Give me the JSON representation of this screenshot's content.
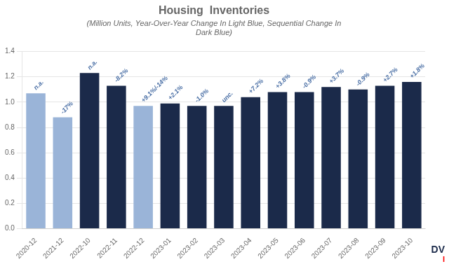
{
  "chart_data": {
    "type": "bar",
    "title": "Housing  Inventories",
    "subtitle": "(Million Units, Year-Over-Year Change In Light Blue, Sequential Change In\nDark Blue)",
    "categories": [
      "2020-12",
      "2021-12",
      "2022-10",
      "2022-11",
      "2022-12",
      "2023-01",
      "2023-02",
      "2023-03",
      "2023-04",
      "2023-05",
      "2023-06",
      "2023-07",
      "2023-08",
      "2023-09",
      "2023-10"
    ],
    "values": [
      1.07,
      0.88,
      1.23,
      1.13,
      0.97,
      0.99,
      0.97,
      0.97,
      1.04,
      1.08,
      1.08,
      1.12,
      1.1,
      1.13,
      1.16
    ],
    "colors": [
      "#9ab4d8",
      "#9ab4d8",
      "#1b2a4a",
      "#1b2a4a",
      "#9ab4d8",
      "#1b2a4a",
      "#1b2a4a",
      "#1b2a4a",
      "#1b2a4a",
      "#1b2a4a",
      "#1b2a4a",
      "#1b2a4a",
      "#1b2a4a",
      "#1b2a4a",
      "#1b2a4a"
    ],
    "ylim": [
      0,
      1.4
    ],
    "yticks": [
      {
        "value": 0.0,
        "label": "0.0"
      },
      0.2,
      0.4,
      0.6,
      0.8,
      {
        "value": 1.0,
        "label": "1.0"
      },
      1.2,
      1.4
    ],
    "grid": true,
    "annotations": [
      {
        "category": "2020-12",
        "text": "n.a.",
        "color": "#4a6fa5"
      },
      {
        "category": "2021-12",
        "text": "-17%",
        "color": "#4a6fa5"
      },
      {
        "category": "2022-10",
        "text": "n.a.",
        "color": "#4a6fa5"
      },
      {
        "category": "2022-11",
        "text": "-8.2%",
        "color": "#4a6fa5"
      },
      {
        "category": "2022-12",
        "text": "+9.1%/-14%",
        "color": "#4a6fa5"
      },
      {
        "category": "2023-01",
        "text": "+2.1%",
        "color": "#4a6fa5"
      },
      {
        "category": "2023-02",
        "text": "-1.0%",
        "color": "#4a6fa5"
      },
      {
        "category": "2023-03",
        "text": "unc.",
        "color": "#4a6fa5"
      },
      {
        "category": "2023-04",
        "text": "+7.2%",
        "color": "#4a6fa5"
      },
      {
        "category": "2023-05",
        "text": "+3.8%",
        "color": "#4a6fa5"
      },
      {
        "category": "2023-06",
        "text": "-0.9%",
        "color": "#4a6fa5"
      },
      {
        "category": "2023-07",
        "text": "+3.7%",
        "color": "#4a6fa5"
      },
      {
        "category": "2023-08",
        "text": "-0.9%",
        "color": "#4a6fa5"
      },
      {
        "category": "2023-09",
        "text": "+2.7%",
        "color": "#4a6fa5"
      },
      {
        "category": "2023-10",
        "text": "+1.8%",
        "color": "#4a6fa5"
      },
      {
        "text": "DV",
        "color": "#1b2a4a"
      },
      {
        "text": "I",
        "color": "red"
      }
    ]
  }
}
